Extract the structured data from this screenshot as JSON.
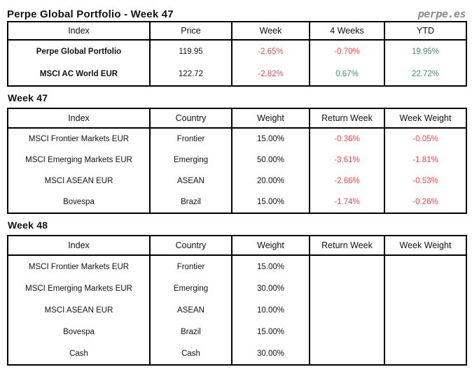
{
  "header": {
    "title": "Perpe Global Portfolio - Week 47",
    "brand": "perpe.es"
  },
  "colors": {
    "negative": "#ef4b50",
    "positive": "#3c9664",
    "brand": "#8c8c8c",
    "border": "#000000"
  },
  "summary": {
    "headers": [
      "Index",
      "Price",
      "Week",
      "4 Weeks",
      "YTD"
    ],
    "rows": [
      {
        "cells": [
          "Perpe Global Portfolio",
          "119.95",
          "-2.65%",
          "-0.70%",
          "19.95%"
        ]
      },
      {
        "cells": [
          "MSCI AC World EUR",
          "122.72",
          "-2.82%",
          "0.67%",
          "22.72%"
        ]
      }
    ]
  },
  "week47": {
    "title": "Week 47",
    "headers": [
      "Index",
      "Country",
      "Weight",
      "Return Week",
      "Week Weight"
    ],
    "rows": [
      {
        "cells": [
          "MSCI Frontier Markets EUR",
          "Frontier",
          "15.00%",
          "-0.36%",
          "-0.05%"
        ]
      },
      {
        "cells": [
          "MSCI Emerging Markets EUR",
          "Emerging",
          "50.00%",
          "-3.61%",
          "-1.81%"
        ]
      },
      {
        "cells": [
          "MSCI ASEAN EUR",
          "ASEAN",
          "20.00%",
          "-2.66%",
          "-0.53%"
        ]
      },
      {
        "cells": [
          "Bovespa",
          "Brazil",
          "15.00%",
          "-1.74%",
          "-0.26%"
        ]
      }
    ]
  },
  "week48": {
    "title": "Week 48",
    "headers": [
      "Index",
      "Country",
      "Weight",
      "Return Week",
      "Week Weight"
    ],
    "rows": [
      {
        "cells": [
          "MSCI Frontier Markets EUR",
          "Frontier",
          "15.00%",
          "",
          ""
        ]
      },
      {
        "cells": [
          "MSCI Emerging Markets EUR",
          "Emerging",
          "30.00%",
          "",
          ""
        ]
      },
      {
        "cells": [
          "MSCI ASEAN EUR",
          "ASEAN",
          "10.00%",
          "",
          ""
        ]
      },
      {
        "cells": [
          "Bovespa",
          "Brazil",
          "15.00%",
          "",
          ""
        ]
      },
      {
        "cells": [
          "Cash",
          "Cash",
          "30.00%",
          "",
          ""
        ]
      }
    ]
  }
}
